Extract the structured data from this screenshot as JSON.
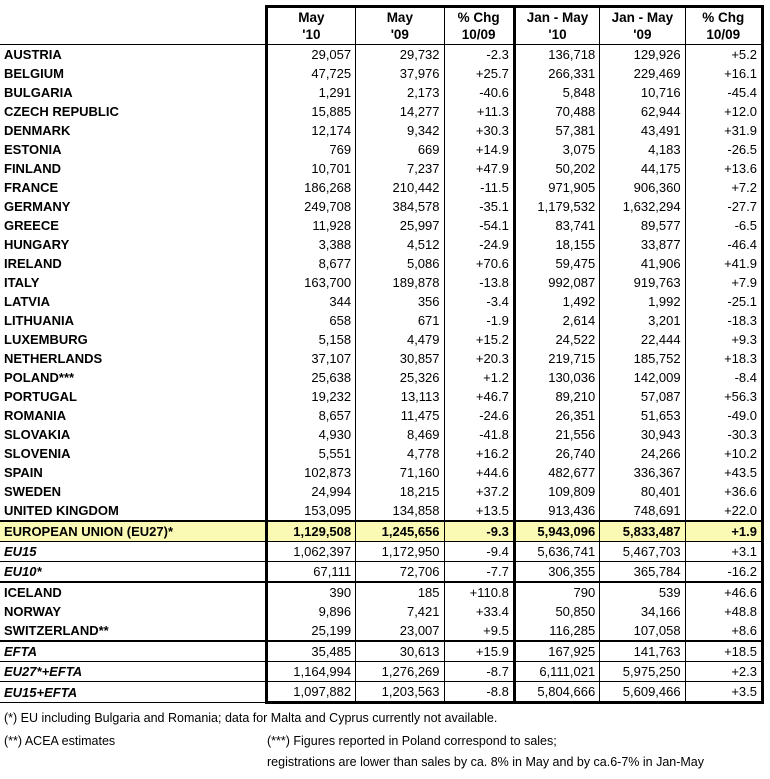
{
  "colors": {
    "highlight": "#fafab4",
    "border": "#000000"
  },
  "table": {
    "columns": [
      {
        "line1": "May",
        "line2": "'10"
      },
      {
        "line1": "May",
        "line2": "'09"
      },
      {
        "line1": "% Chg",
        "line2": "10/09"
      },
      {
        "line1": "Jan - May",
        "line2": "'10"
      },
      {
        "line1": "Jan - May",
        "line2": "'09"
      },
      {
        "line1": "% Chg",
        "line2": "10/09"
      }
    ],
    "rows": [
      {
        "label": "AUSTRIA",
        "type": "country",
        "sep": "none",
        "values": [
          "29,057",
          "29,732",
          "-2.3",
          "136,718",
          "129,926",
          "+5.2"
        ]
      },
      {
        "label": "BELGIUM",
        "type": "country",
        "sep": "none",
        "values": [
          "47,725",
          "37,976",
          "+25.7",
          "266,331",
          "229,469",
          "+16.1"
        ]
      },
      {
        "label": "BULGARIA",
        "type": "country",
        "sep": "none",
        "values": [
          "1,291",
          "2,173",
          "-40.6",
          "5,848",
          "10,716",
          "-45.4"
        ]
      },
      {
        "label": "CZECH REPUBLIC",
        "type": "country",
        "sep": "none",
        "values": [
          "15,885",
          "14,277",
          "+11.3",
          "70,488",
          "62,944",
          "+12.0"
        ]
      },
      {
        "label": "DENMARK",
        "type": "country",
        "sep": "none",
        "values": [
          "12,174",
          "9,342",
          "+30.3",
          "57,381",
          "43,491",
          "+31.9"
        ]
      },
      {
        "label": "ESTONIA",
        "type": "country",
        "sep": "none",
        "values": [
          "769",
          "669",
          "+14.9",
          "3,075",
          "4,183",
          "-26.5"
        ]
      },
      {
        "label": "FINLAND",
        "type": "country",
        "sep": "none",
        "values": [
          "10,701",
          "7,237",
          "+47.9",
          "50,202",
          "44,175",
          "+13.6"
        ]
      },
      {
        "label": "FRANCE",
        "type": "country",
        "sep": "none",
        "values": [
          "186,268",
          "210,442",
          "-11.5",
          "971,905",
          "906,360",
          "+7.2"
        ]
      },
      {
        "label": "GERMANY",
        "type": "country",
        "sep": "none",
        "values": [
          "249,708",
          "384,578",
          "-35.1",
          "1,179,532",
          "1,632,294",
          "-27.7"
        ]
      },
      {
        "label": "GREECE",
        "type": "country",
        "sep": "none",
        "values": [
          "11,928",
          "25,997",
          "-54.1",
          "83,741",
          "89,577",
          "-6.5"
        ]
      },
      {
        "label": "HUNGARY",
        "type": "country",
        "sep": "none",
        "values": [
          "3,388",
          "4,512",
          "-24.9",
          "18,155",
          "33,877",
          "-46.4"
        ]
      },
      {
        "label": "IRELAND",
        "type": "country",
        "sep": "none",
        "values": [
          "8,677",
          "5,086",
          "+70.6",
          "59,475",
          "41,906",
          "+41.9"
        ]
      },
      {
        "label": "ITALY",
        "type": "country",
        "sep": "none",
        "values": [
          "163,700",
          "189,878",
          "-13.8",
          "992,087",
          "919,763",
          "+7.9"
        ]
      },
      {
        "label": "LATVIA",
        "type": "country",
        "sep": "none",
        "values": [
          "344",
          "356",
          "-3.4",
          "1,492",
          "1,992",
          "-25.1"
        ]
      },
      {
        "label": "LITHUANIA",
        "type": "country",
        "sep": "none",
        "values": [
          "658",
          "671",
          "-1.9",
          "2,614",
          "3,201",
          "-18.3"
        ]
      },
      {
        "label": "LUXEMBURG",
        "type": "country",
        "sep": "none",
        "values": [
          "5,158",
          "4,479",
          "+15.2",
          "24,522",
          "22,444",
          "+9.3"
        ]
      },
      {
        "label": "NETHERLANDS",
        "type": "country",
        "sep": "none",
        "values": [
          "37,107",
          "30,857",
          "+20.3",
          "219,715",
          "185,752",
          "+18.3"
        ]
      },
      {
        "label": "POLAND***",
        "type": "country",
        "sep": "none",
        "values": [
          "25,638",
          "25,326",
          "+1.2",
          "130,036",
          "142,009",
          "-8.4"
        ]
      },
      {
        "label": "PORTUGAL",
        "type": "country",
        "sep": "none",
        "values": [
          "19,232",
          "13,113",
          "+46.7",
          "89,210",
          "57,087",
          "+56.3"
        ]
      },
      {
        "label": "ROMANIA",
        "type": "country",
        "sep": "none",
        "values": [
          "8,657",
          "11,475",
          "-24.6",
          "26,351",
          "51,653",
          "-49.0"
        ]
      },
      {
        "label": "SLOVAKIA",
        "type": "country",
        "sep": "none",
        "values": [
          "4,930",
          "8,469",
          "-41.8",
          "21,556",
          "30,943",
          "-30.3"
        ]
      },
      {
        "label": "SLOVENIA",
        "type": "country",
        "sep": "none",
        "values": [
          "5,551",
          "4,778",
          "+16.2",
          "26,740",
          "24,266",
          "+10.2"
        ]
      },
      {
        "label": "SPAIN",
        "type": "country",
        "sep": "none",
        "values": [
          "102,873",
          "71,160",
          "+44.6",
          "482,677",
          "336,367",
          "+43.5"
        ]
      },
      {
        "label": "SWEDEN",
        "type": "country",
        "sep": "none",
        "values": [
          "24,994",
          "18,215",
          "+37.2",
          "109,809",
          "80,401",
          "+36.6"
        ]
      },
      {
        "label": "UNITED KINGDOM",
        "type": "country",
        "sep": "none",
        "values": [
          "153,095",
          "134,858",
          "+13.5",
          "913,436",
          "748,691",
          "+22.0"
        ]
      },
      {
        "label": "EUROPEAN UNION (EU27)*",
        "type": "total",
        "sep": "med",
        "values": [
          "1,129,508",
          "1,245,656",
          "-9.3",
          "5,943,096",
          "5,833,487",
          "+1.9"
        ]
      },
      {
        "label": "EU15",
        "type": "agg",
        "sep": "thin",
        "values": [
          "1,062,397",
          "1,172,950",
          "-9.4",
          "5,636,741",
          "5,467,703",
          "+3.1"
        ]
      },
      {
        "label": "EU10*",
        "type": "agg",
        "sep": "thin",
        "values": [
          "67,111",
          "72,706",
          "-7.7",
          "306,355",
          "365,784",
          "-16.2"
        ]
      },
      {
        "label": "ICELAND",
        "type": "country",
        "sep": "med",
        "values": [
          "390",
          "185",
          "+110.8",
          "790",
          "539",
          "+46.6"
        ]
      },
      {
        "label": "NORWAY",
        "type": "country",
        "sep": "none",
        "values": [
          "9,896",
          "7,421",
          "+33.4",
          "50,850",
          "34,166",
          "+48.8"
        ]
      },
      {
        "label": "SWITZERLAND**",
        "type": "country",
        "sep": "none",
        "values": [
          "25,199",
          "23,007",
          "+9.5",
          "116,285",
          "107,058",
          "+8.6"
        ]
      },
      {
        "label": "EFTA",
        "type": "agg",
        "sep": "med",
        "values": [
          "35,485",
          "30,613",
          "+15.9",
          "167,925",
          "141,763",
          "+18.5"
        ]
      },
      {
        "label": "EU27*+EFTA",
        "type": "agg",
        "sep": "thin",
        "values": [
          "1,164,994",
          "1,276,269",
          "-8.7",
          "6,111,021",
          "5,975,250",
          "+2.3"
        ]
      },
      {
        "label": "EU15+EFTA",
        "type": "agg",
        "sep": "thin",
        "values": [
          "1,097,882",
          "1,203,563",
          "-8.8",
          "5,804,666",
          "5,609,466",
          "+3.5"
        ]
      }
    ]
  },
  "footnotes": {
    "eu_note": "(*) EU including Bulgaria and Romania; data for Malta and Cyprus currently not available.",
    "acea_note": "(**) ACEA estimates",
    "poland_note_line1": "(***) Figures reported in Poland correspond to sales;",
    "poland_note_line2": "registrations are lower than sales by ca. 8% in May and by ca.6-7% in Jan-May"
  }
}
